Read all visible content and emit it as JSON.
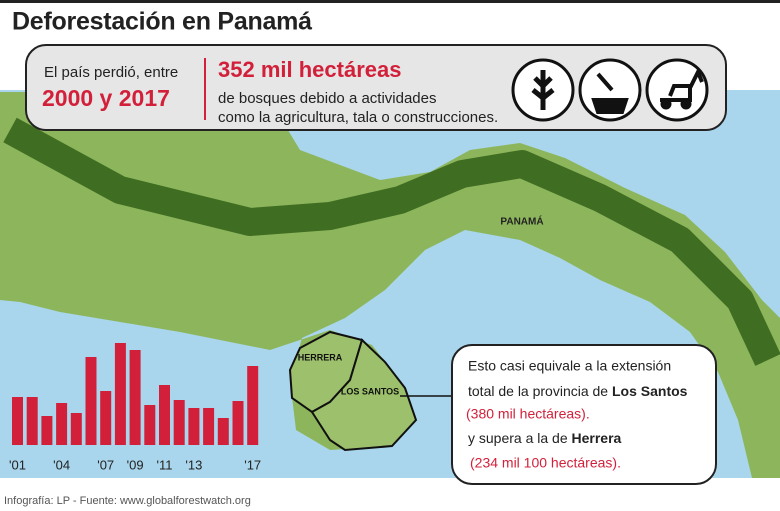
{
  "header": {
    "title": "Deforestación en Panamá"
  },
  "banner": {
    "intro": "El país perdió, entre",
    "period": "2000 y 2017",
    "amount": "352 mil hectáreas",
    "line1": "de bosques debido a actividades",
    "line2": "como la agricultura, tala o construcciones."
  },
  "map": {
    "labels": [
      "PANAMÁ",
      "HERRERA",
      "LOS SANTOS"
    ]
  },
  "callout": {
    "line1": "Esto  casi  equivale a la extensión",
    "line2a": "total de la provincia de ",
    "line2b": "Los Santos",
    "line3": "(380 mil hectáreas).",
    "line4a": "y supera a la de ",
    "line4b": "Herrera",
    "line5": "(234 mil 100 hectáreas)."
  },
  "chart_data": {
    "type": "bar",
    "color": "#d3203a",
    "categories": [
      "'01",
      null,
      null,
      "'04",
      null,
      null,
      "'07",
      null,
      "'09",
      null,
      "'11",
      null,
      "'13",
      null,
      null,
      null,
      "'17"
    ],
    "values": [
      48,
      48,
      29,
      42,
      32,
      88,
      54,
      102,
      95,
      40,
      60,
      45,
      37,
      37,
      27,
      44,
      79
    ]
  },
  "footer": {
    "credit": "Infografía: LP  - Fuente: www.globalforestwatch.org"
  }
}
